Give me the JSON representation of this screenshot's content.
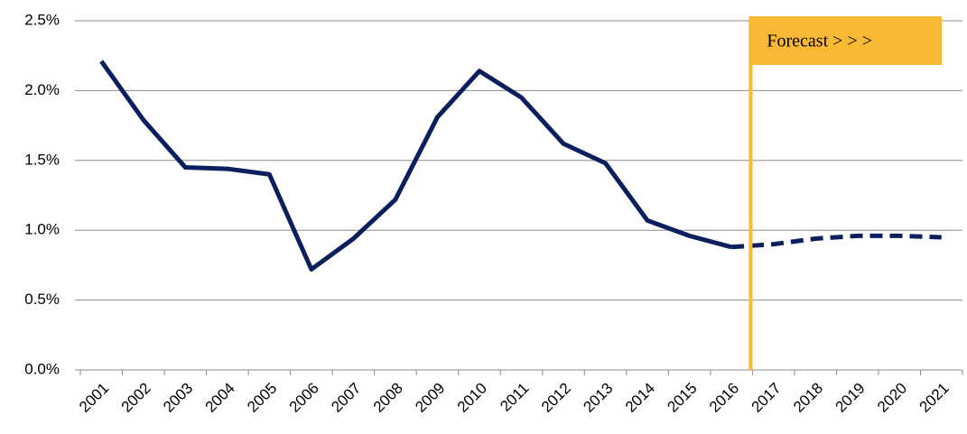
{
  "chart_data": {
    "type": "line",
    "categories": [
      "2001",
      "2002",
      "2003",
      "2004",
      "2005",
      "2006",
      "2007",
      "2008",
      "2009",
      "2010",
      "2011",
      "2012",
      "2013",
      "2014",
      "2015",
      "2016",
      "2017",
      "2018",
      "2019",
      "2020",
      "2021"
    ],
    "series": [
      {
        "color": "#0b1f5e",
        "style": "solid",
        "values": [
          2.21,
          1.79,
          1.45,
          1.44,
          1.4,
          0.72,
          0.94,
          1.22,
          1.81,
          2.14,
          1.95,
          1.62,
          1.48,
          1.07,
          0.96,
          0.88,
          null,
          null,
          null,
          null,
          null
        ]
      },
      {
        "color": "#0b1f5e",
        "style": "dashed",
        "values": [
          null,
          null,
          null,
          null,
          null,
          null,
          null,
          null,
          null,
          null,
          null,
          null,
          null,
          null,
          null,
          0.88,
          0.9,
          0.94,
          0.96,
          0.96,
          0.95
        ]
      }
    ],
    "ylim": [
      0,
      2.5
    ],
    "yticks": [
      {
        "value": 0,
        "label": "0.0%"
      },
      {
        "value": 0.5,
        "label": "0.5%"
      },
      {
        "value": 1,
        "label": "1.0%"
      },
      {
        "value": 1.5,
        "label": "1.5%"
      },
      {
        "value": 2,
        "label": "2.0%"
      },
      {
        "value": 2.5,
        "label": "2.5%"
      }
    ],
    "grid": true,
    "annotation": {
      "text": "Forecast > > >",
      "color": "#f9b935"
    }
  }
}
